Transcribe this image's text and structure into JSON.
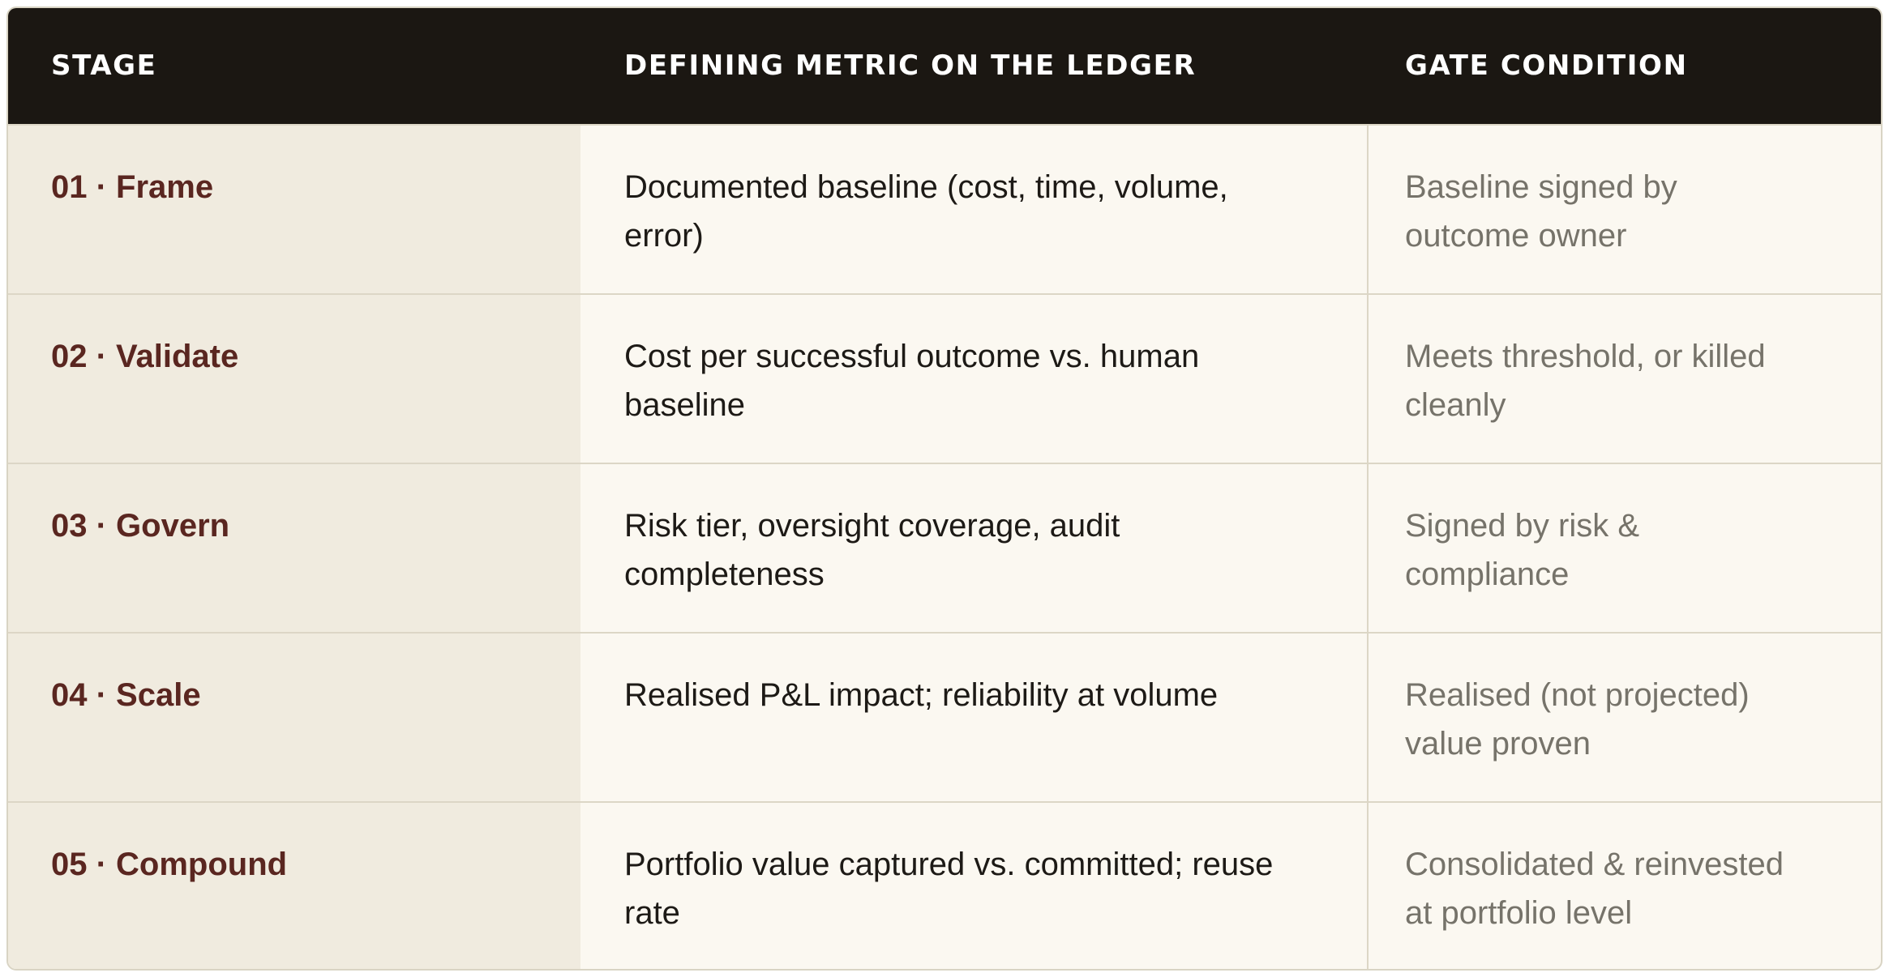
{
  "header": {
    "stage": "STAGE",
    "metric": "DEFINING METRIC ON THE LEDGER",
    "gate": "GATE CONDITION"
  },
  "rows": [
    {
      "stage": "01 · Frame",
      "metric": [
        "Documented baseline (cost, time, volume,",
        "error)"
      ],
      "gate": [
        "Baseline signed by",
        "outcome owner"
      ]
    },
    {
      "stage": "02 · Validate",
      "metric": [
        "Cost per successful outcome vs. human",
        "baseline"
      ],
      "gate": [
        "Meets threshold, or killed",
        "cleanly"
      ]
    },
    {
      "stage": "03 · Govern",
      "metric": [
        "Risk tier, oversight coverage, audit",
        "completeness"
      ],
      "gate": [
        "Signed by risk &",
        "compliance"
      ]
    },
    {
      "stage": "04 · Scale",
      "metric": [
        "Realised P&L impact; reliability at volume"
      ],
      "gate": [
        "Realised (not projected)",
        "value proven"
      ]
    },
    {
      "stage": "05 · Compound",
      "metric": [
        "Portfolio value captured vs. committed; reuse",
        "rate"
      ],
      "gate": [
        "Consolidated & reinvested",
        "at portfolio level"
      ]
    }
  ],
  "colors": {
    "header_bg": "#1b1712",
    "stage_text": "#5a2620",
    "stage_bg": "#f0ebdf",
    "body_bg": "#fbf8f1",
    "gate_text": "#76736a"
  }
}
